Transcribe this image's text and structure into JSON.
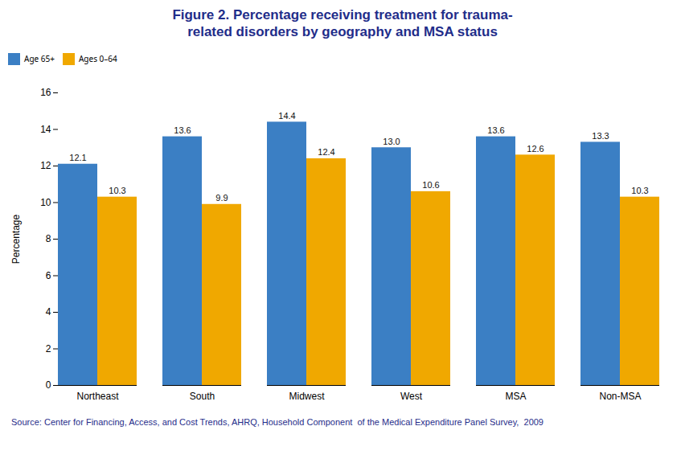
{
  "chart_data": {
    "type": "bar",
    "title": "Figure 2. Percentage receiving treatment for trauma-\nrelated disorders by geography and MSA status",
    "ylabel": "Percentage",
    "annotations": [
      "Source: Center for Financing, Access, and Cost Trends, AHRQ, Household Component  of the Medical Expenditure Panel Survey,  2009"
    ],
    "categories": [
      "Northeast",
      "South",
      "Midwest",
      "West",
      "MSA",
      "Non-MSA"
    ],
    "series": [
      {
        "name": "Age 65+",
        "color": "#3B7FC4",
        "values": [
          12.1,
          13.6,
          14.4,
          13.0,
          13.6,
          13.3
        ],
        "value_labels": [
          "12.1",
          "13.6",
          "14.4",
          "13.0",
          "13.6",
          "13.3"
        ]
      },
      {
        "name": "Ages 0–64",
        "color": "#F0A800",
        "values": [
          10.3,
          9.9,
          12.4,
          10.6,
          12.6,
          10.3
        ],
        "value_labels": [
          "10.3",
          "9.9",
          "12.4",
          "10.6",
          "12.6",
          "10.3"
        ]
      }
    ],
    "ylim": [
      0,
      16
    ],
    "yticks": [
      0,
      2,
      4,
      6,
      8,
      10,
      12,
      14,
      16
    ],
    "grid": false,
    "legend": "top",
    "data_labels": true
  }
}
